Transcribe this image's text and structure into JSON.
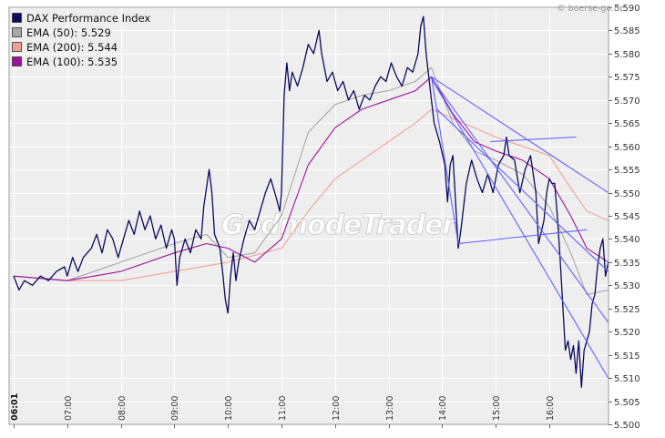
{
  "copyright": "© boerse-go.de",
  "watermark": "GodmodeTrader",
  "colors": {
    "background": "#eeeeee",
    "grid": "#ffffff",
    "dax": "#0a0a5c",
    "ema50": "#a8a8a8",
    "ema200": "#f2a095",
    "ema100": "#a0109a",
    "trendline": "#6060ff"
  },
  "chart_data": {
    "type": "line",
    "ylim": [
      5500,
      5590
    ],
    "y_ticks": [
      "5.500",
      "5.505",
      "5.510",
      "5.515",
      "5.520",
      "5.525",
      "5.530",
      "5.535",
      "5.540",
      "5.545",
      "5.550",
      "5.555",
      "5.560",
      "5.565",
      "5.570",
      "5.575",
      "5.580",
      "5.585",
      "5.590"
    ],
    "x_ticks": [
      "06:01",
      "07:00",
      "08:00",
      "09:00",
      "10:00",
      "11:00",
      "12:00",
      "13:00",
      "14:00",
      "15:00",
      "16:00"
    ],
    "grid": true,
    "legend_position": "top-left",
    "series": [
      {
        "name": "DAX Performance Index",
        "label": "DAX Performance Index",
        "color": "#0a0a5c",
        "points": [
          [
            0,
            5532
          ],
          [
            0.1,
            5529
          ],
          [
            0.2,
            5531
          ],
          [
            0.35,
            5530
          ],
          [
            0.5,
            5532
          ],
          [
            0.65,
            5531
          ],
          [
            0.8,
            5533
          ],
          [
            0.95,
            5534
          ],
          [
            1.0,
            5532
          ],
          [
            1.1,
            5536
          ],
          [
            1.2,
            5533
          ],
          [
            1.3,
            5536
          ],
          [
            1.45,
            5538
          ],
          [
            1.55,
            5541
          ],
          [
            1.65,
            5537
          ],
          [
            1.75,
            5542
          ],
          [
            1.85,
            5540
          ],
          [
            1.95,
            5536
          ],
          [
            2.05,
            5540
          ],
          [
            2.15,
            5544
          ],
          [
            2.25,
            5541
          ],
          [
            2.35,
            5546
          ],
          [
            2.45,
            5542
          ],
          [
            2.55,
            5545
          ],
          [
            2.65,
            5540
          ],
          [
            2.75,
            5543
          ],
          [
            2.85,
            5538
          ],
          [
            2.95,
            5542
          ],
          [
            3.0,
            5540
          ],
          [
            3.05,
            5530
          ],
          [
            3.1,
            5536
          ],
          [
            3.2,
            5540
          ],
          [
            3.3,
            5537
          ],
          [
            3.4,
            5542
          ],
          [
            3.5,
            5540
          ],
          [
            3.55,
            5547
          ],
          [
            3.65,
            5555
          ],
          [
            3.7,
            5550
          ],
          [
            3.75,
            5541
          ],
          [
            3.85,
            5538
          ],
          [
            3.9,
            5533
          ],
          [
            3.95,
            5527
          ],
          [
            4.0,
            5524
          ],
          [
            4.05,
            5532
          ],
          [
            4.1,
            5537
          ],
          [
            4.15,
            5531
          ],
          [
            4.2,
            5535
          ],
          [
            4.3,
            5540
          ],
          [
            4.4,
            5544
          ],
          [
            4.5,
            5542
          ],
          [
            4.6,
            5546
          ],
          [
            4.7,
            5550
          ],
          [
            4.8,
            5553
          ],
          [
            4.9,
            5549
          ],
          [
            4.97,
            5546
          ],
          [
            5.0,
            5550
          ],
          [
            5.05,
            5571
          ],
          [
            5.1,
            5578
          ],
          [
            5.15,
            5572
          ],
          [
            5.2,
            5576
          ],
          [
            5.3,
            5573
          ],
          [
            5.4,
            5577
          ],
          [
            5.5,
            5582
          ],
          [
            5.6,
            5580
          ],
          [
            5.7,
            5585
          ],
          [
            5.75,
            5580
          ],
          [
            5.85,
            5574
          ],
          [
            5.95,
            5576
          ],
          [
            6.05,
            5572
          ],
          [
            6.15,
            5574
          ],
          [
            6.25,
            5570
          ],
          [
            6.35,
            5572
          ],
          [
            6.45,
            5568
          ],
          [
            6.55,
            5571
          ],
          [
            6.65,
            5570
          ],
          [
            6.75,
            5573
          ],
          [
            6.85,
            5575
          ],
          [
            6.95,
            5574
          ],
          [
            7.05,
            5578
          ],
          [
            7.15,
            5575
          ],
          [
            7.25,
            5573
          ],
          [
            7.35,
            5577
          ],
          [
            7.45,
            5576
          ],
          [
            7.55,
            5580
          ],
          [
            7.6,
            5586
          ],
          [
            7.65,
            5588
          ],
          [
            7.7,
            5580
          ],
          [
            7.8,
            5570
          ],
          [
            7.85,
            5565
          ],
          [
            7.95,
            5561
          ],
          [
            8.05,
            5556
          ],
          [
            8.1,
            5548
          ],
          [
            8.15,
            5556
          ],
          [
            8.2,
            5558
          ],
          [
            8.25,
            5548
          ],
          [
            8.3,
            5538
          ],
          [
            8.35,
            5542
          ],
          [
            8.45,
            5552
          ],
          [
            8.55,
            5557
          ],
          [
            8.65,
            5553
          ],
          [
            8.75,
            5550
          ],
          [
            8.85,
            5554
          ],
          [
            8.95,
            5550
          ],
          [
            9.05,
            5556
          ],
          [
            9.15,
            5558
          ],
          [
            9.2,
            5562
          ],
          [
            9.25,
            5558
          ],
          [
            9.35,
            5557
          ],
          [
            9.45,
            5550
          ],
          [
            9.55,
            5555
          ],
          [
            9.65,
            5558
          ],
          [
            9.75,
            5550
          ],
          [
            9.8,
            5539
          ],
          [
            9.9,
            5544
          ],
          [
            9.95,
            5550
          ],
          [
            10.0,
            5553
          ],
          [
            10.05,
            5552
          ],
          [
            10.1,
            5552
          ],
          [
            10.15,
            5545
          ],
          [
            10.2,
            5536
          ],
          [
            10.25,
            5526
          ],
          [
            10.3,
            5516
          ],
          [
            10.35,
            5518
          ],
          [
            10.4,
            5514
          ],
          [
            10.45,
            5517
          ],
          [
            10.5,
            5511
          ],
          [
            10.55,
            5518
          ],
          [
            10.6,
            5508
          ],
          [
            10.65,
            5516
          ],
          [
            10.75,
            5520
          ],
          [
            10.8,
            5526
          ],
          [
            10.85,
            5528
          ],
          [
            10.9,
            5534
          ],
          [
            10.95,
            5538
          ],
          [
            11.0,
            5540
          ],
          [
            11.05,
            5532
          ],
          [
            11.1,
            5535
          ]
        ]
      },
      {
        "name": "EMA (50)",
        "label": "EMA (50): 5.529",
        "color": "#a8a8a8",
        "points": [
          [
            0,
            5532
          ],
          [
            1,
            5531
          ],
          [
            2,
            5535
          ],
          [
            3,
            5539
          ],
          [
            3.6,
            5541
          ],
          [
            4,
            5536
          ],
          [
            4.5,
            5537
          ],
          [
            5,
            5545
          ],
          [
            5.5,
            5563
          ],
          [
            6,
            5569
          ],
          [
            6.5,
            5571
          ],
          [
            7,
            5572
          ],
          [
            7.5,
            5574
          ],
          [
            7.8,
            5577
          ],
          [
            8.2,
            5565
          ],
          [
            8.6,
            5559
          ],
          [
            9,
            5557
          ],
          [
            9.5,
            5554
          ],
          [
            10,
            5547
          ],
          [
            10.4,
            5537
          ],
          [
            10.7,
            5528
          ],
          [
            11.1,
            5529
          ]
        ]
      },
      {
        "name": "EMA (200)",
        "label": "EMA (200): 5.544",
        "color": "#f2a095",
        "points": [
          [
            0,
            5532
          ],
          [
            1,
            5531
          ],
          [
            2,
            5531
          ],
          [
            3,
            5533
          ],
          [
            4,
            5535
          ],
          [
            5,
            5538
          ],
          [
            5.5,
            5546
          ],
          [
            6,
            5553
          ],
          [
            6.5,
            5557
          ],
          [
            7,
            5561
          ],
          [
            7.5,
            5565
          ],
          [
            7.8,
            5568
          ],
          [
            8.2,
            5566
          ],
          [
            8.6,
            5564
          ],
          [
            9,
            5562
          ],
          [
            9.5,
            5560
          ],
          [
            10,
            5558
          ],
          [
            10.4,
            5551
          ],
          [
            10.7,
            5546
          ],
          [
            11.1,
            5544
          ]
        ]
      },
      {
        "name": "EMA (100)",
        "label": "EMA (100): 5.535",
        "color": "#a0109a",
        "points": [
          [
            0,
            5532
          ],
          [
            1,
            5531
          ],
          [
            2,
            5533
          ],
          [
            3,
            5537
          ],
          [
            3.6,
            5539
          ],
          [
            4,
            5538
          ],
          [
            4.5,
            5535
          ],
          [
            5,
            5540
          ],
          [
            5.5,
            5556
          ],
          [
            6,
            5564
          ],
          [
            6.5,
            5568
          ],
          [
            7,
            5570
          ],
          [
            7.5,
            5572
          ],
          [
            7.8,
            5575
          ],
          [
            8.2,
            5567
          ],
          [
            8.6,
            5561
          ],
          [
            9,
            5559
          ],
          [
            9.5,
            5557
          ],
          [
            10,
            5553
          ],
          [
            10.4,
            5545
          ],
          [
            10.7,
            5538
          ],
          [
            11.1,
            5535
          ]
        ]
      }
    ],
    "trendlines": [
      [
        [
          7.78,
          5575
        ],
        [
          11.1,
          5510
        ]
      ],
      [
        [
          7.78,
          5575
        ],
        [
          11.1,
          5522
        ]
      ],
      [
        [
          7.9,
          5568
        ],
        [
          11.1,
          5533
        ]
      ],
      [
        [
          7.8,
          5575
        ],
        [
          11.1,
          5550
        ]
      ],
      [
        [
          7.8,
          5575
        ],
        [
          8.3,
          5539
        ]
      ],
      [
        [
          8.3,
          5539
        ],
        [
          10.7,
          5542
        ]
      ],
      [
        [
          8.9,
          5561
        ],
        [
          10.5,
          5562
        ]
      ]
    ]
  }
}
